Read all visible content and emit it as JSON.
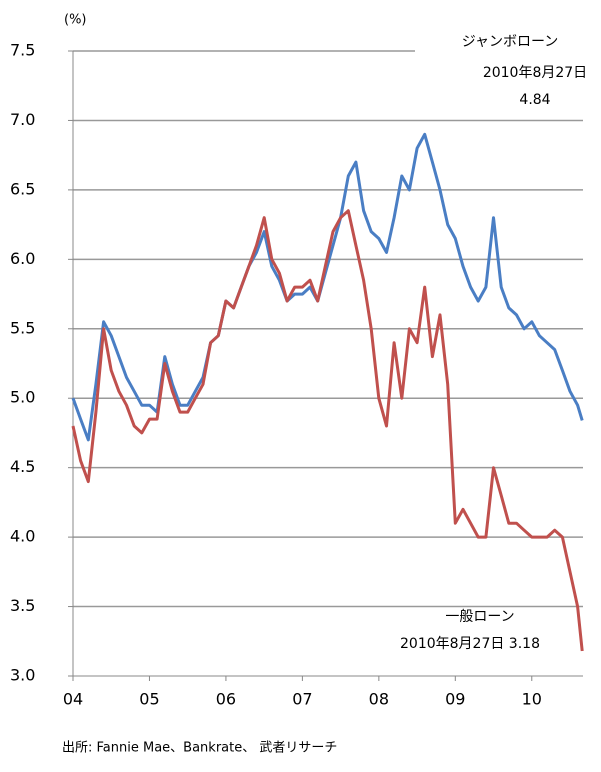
{
  "chart_data": {
    "type": "line",
    "unit_label": "(%)",
    "source": "出所: Fannie Mae、Bankrate、 武者リサーチ",
    "x": [
      2004.0,
      2004.1,
      2004.2,
      2004.3,
      2004.4,
      2004.5,
      2004.6,
      2004.7,
      2004.8,
      2004.9,
      2005.0,
      2005.1,
      2005.2,
      2005.3,
      2005.4,
      2005.5,
      2005.6,
      2005.7,
      2005.8,
      2005.9,
      2006.0,
      2006.1,
      2006.2,
      2006.3,
      2006.4,
      2006.5,
      2006.6,
      2006.7,
      2006.8,
      2006.9,
      2007.0,
      2007.1,
      2007.2,
      2007.3,
      2007.4,
      2007.5,
      2007.6,
      2007.7,
      2007.8,
      2007.9,
      2008.0,
      2008.1,
      2008.2,
      2008.3,
      2008.4,
      2008.5,
      2008.6,
      2008.7,
      2008.8,
      2008.9,
      2009.0,
      2009.1,
      2009.2,
      2009.3,
      2009.4,
      2009.5,
      2009.6,
      2009.7,
      2009.8,
      2009.9,
      2010.0,
      2010.1,
      2010.2,
      2010.3,
      2010.4,
      2010.5,
      2010.6,
      2010.66
    ],
    "series": [
      {
        "name": "ジャンボローン",
        "color": "#4a7ec4",
        "annotation": [
          "2010年8月27日",
          "4.84"
        ],
        "values": [
          5.0,
          4.85,
          4.7,
          5.1,
          5.55,
          5.45,
          5.3,
          5.15,
          5.05,
          4.95,
          4.95,
          4.9,
          5.3,
          5.1,
          4.95,
          4.95,
          5.05,
          5.15,
          5.4,
          5.45,
          5.7,
          5.65,
          5.8,
          5.95,
          6.05,
          6.2,
          5.95,
          5.85,
          5.7,
          5.75,
          5.75,
          5.8,
          5.7,
          5.9,
          6.1,
          6.3,
          6.6,
          6.7,
          6.35,
          6.2,
          6.15,
          6.05,
          6.3,
          6.6,
          6.5,
          6.8,
          6.9,
          6.7,
          6.5,
          6.25,
          6.15,
          5.95,
          5.8,
          5.7,
          5.8,
          6.3,
          5.8,
          5.65,
          5.6,
          5.5,
          5.55,
          5.45,
          5.4,
          5.35,
          5.2,
          5.05,
          4.95,
          4.84
        ]
      },
      {
        "name": "一般ローン",
        "color": "#c0504d",
        "annotation": [
          "2010年8月27日 3.18"
        ],
        "values": [
          4.8,
          4.55,
          4.4,
          4.9,
          5.5,
          5.2,
          5.05,
          4.95,
          4.8,
          4.75,
          4.85,
          4.85,
          5.25,
          5.05,
          4.9,
          4.9,
          5.0,
          5.1,
          5.4,
          5.45,
          5.7,
          5.65,
          5.8,
          5.95,
          6.1,
          6.3,
          6.0,
          5.9,
          5.7,
          5.8,
          5.8,
          5.85,
          5.7,
          5.95,
          6.2,
          6.3,
          6.35,
          6.1,
          5.85,
          5.5,
          5.0,
          4.8,
          5.4,
          5.0,
          5.5,
          5.4,
          5.8,
          5.3,
          5.6,
          5.1,
          4.1,
          4.2,
          4.1,
          4.0,
          4.0,
          4.5,
          4.3,
          4.1,
          4.1,
          4.05,
          4.0,
          4.0,
          4.0,
          4.05,
          4.0,
          3.75,
          3.5,
          3.18
        ]
      }
    ],
    "xlim": [
      2004,
      2010.67
    ],
    "xticks": [
      {
        "value": 2004,
        "label": "04"
      },
      {
        "value": 2005,
        "label": "05"
      },
      {
        "value": 2006,
        "label": "06"
      },
      {
        "value": 2007,
        "label": "07"
      },
      {
        "value": 2008,
        "label": "08"
      },
      {
        "value": 2009,
        "label": "09"
      },
      {
        "value": 2010,
        "label": "10"
      }
    ],
    "ylim": [
      3,
      7.5
    ],
    "yticks": [
      {
        "value": 3,
        "label": "3.0"
      },
      3.5,
      {
        "value": 4,
        "label": "4.0"
      },
      4.5,
      {
        "value": 5,
        "label": "5.0"
      },
      5.5,
      {
        "value": 6,
        "label": "6.0"
      },
      6.5,
      {
        "value": 7,
        "label": "7.0"
      },
      7.5
    ],
    "grid": true
  }
}
